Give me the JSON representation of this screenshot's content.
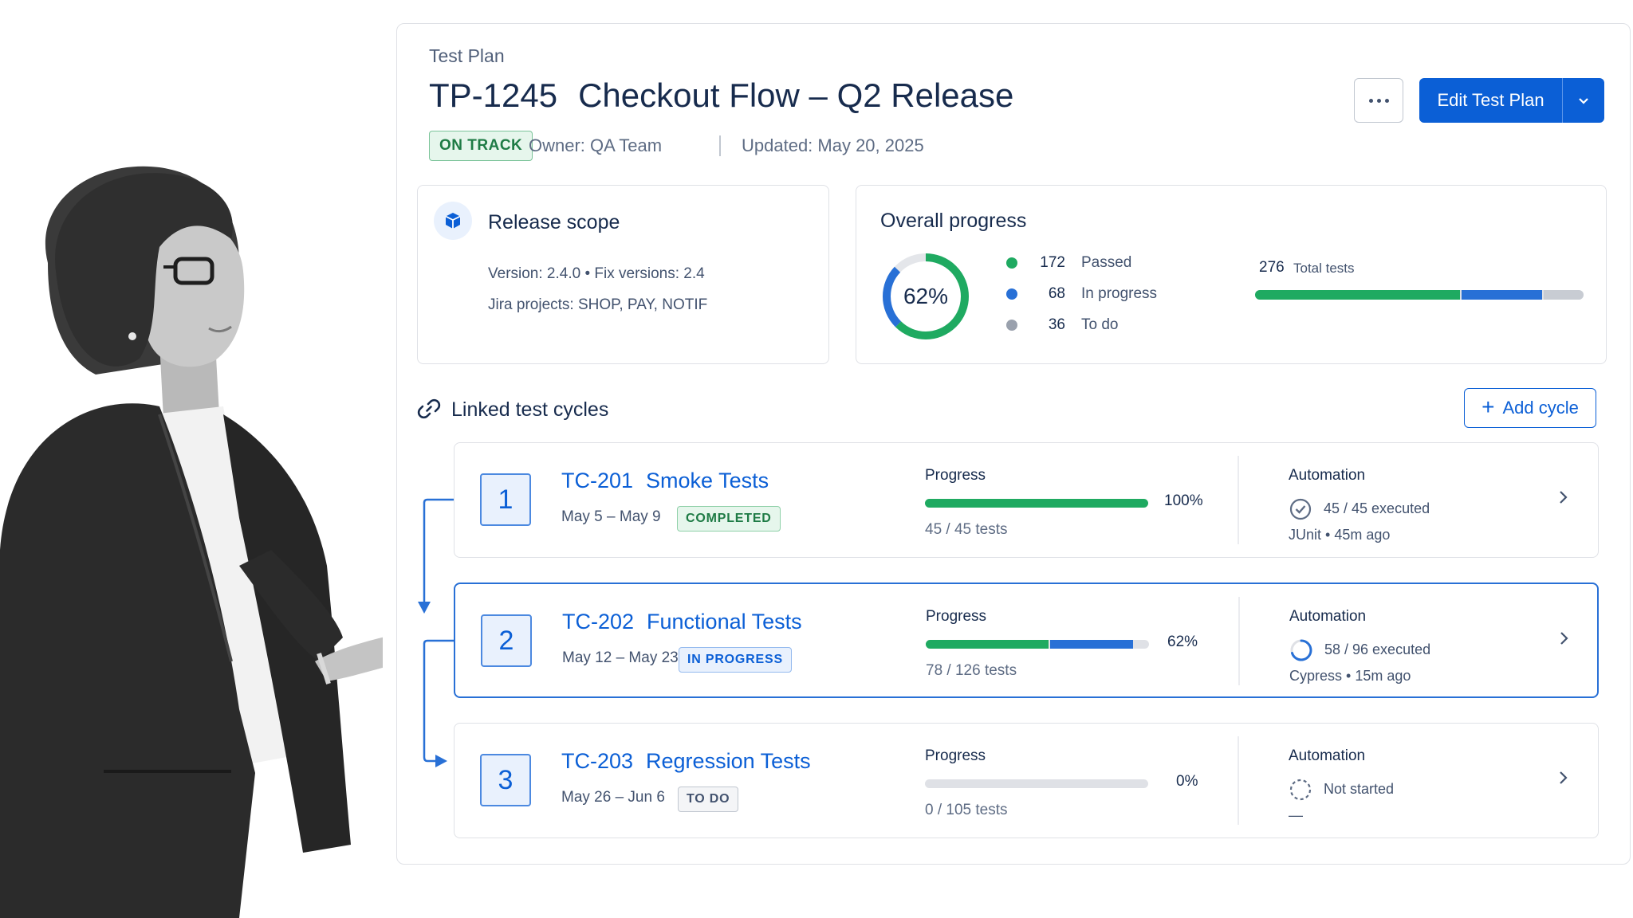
{
  "header": {
    "eyebrow": "Test Plan",
    "key": "TP-1245",
    "title": "Checkout Flow – Q2 Release",
    "status": "ON TRACK",
    "owner": "Owner: QA Team",
    "updated": "Updated: May 20, 2025",
    "edit_label": "Edit Test Plan"
  },
  "release_scope": {
    "title": "Release scope",
    "version_line": "Version: 2.4.0  •  Fix versions: 2.4",
    "projects_line": "Jira projects: SHOP, PAY, NOTIF"
  },
  "overall": {
    "title": "Overall progress",
    "percent_label": "62%",
    "percent": 62,
    "passed": 172,
    "passed_label": "Passed",
    "in_progress": 68,
    "in_progress_label": "In progress",
    "todo": 36,
    "todo_label": "To do",
    "total": 276,
    "total_label": "Total tests"
  },
  "colors": {
    "primary": "#0b5fd6",
    "passed": "#1faa61",
    "in_progress": "#2870d6",
    "todo": "#c1c7d0"
  },
  "linked": {
    "title": "Linked test cycles",
    "add_label": "Add cycle",
    "cycles": [
      {
        "num": "1",
        "key": "TC-201",
        "name": "Smoke Tests",
        "dates": "May 5 – May 9",
        "status": "COMPLETED",
        "progress_label": "Progress",
        "pct_label": "100%",
        "passed_frac": 1.0,
        "inprog_frac": 0.0,
        "tests": "45 / 45 tests",
        "automation_label": "Automation",
        "executed": "45 / 45 executed",
        "meta": "JUnit • 45m ago"
      },
      {
        "num": "2",
        "key": "TC-202",
        "name": "Functional Tests",
        "dates": "May 12 – May 23",
        "status": "IN PROGRESS",
        "progress_label": "Progress",
        "pct_label": "62%",
        "passed_frac": 0.55,
        "inprog_frac": 0.37,
        "tests": "78 / 126 tests",
        "automation_label": "Automation",
        "executed": "58 / 96 executed",
        "meta": "Cypress • 15m ago"
      },
      {
        "num": "3",
        "key": "TC-203",
        "name": "Regression Tests",
        "dates": "May 26 – Jun 6",
        "status": "TO DO",
        "progress_label": "Progress",
        "pct_label": "0%",
        "passed_frac": 0.0,
        "inprog_frac": 0.0,
        "tests": "0 / 105 tests",
        "automation_label": "Automation",
        "executed": "Not started",
        "meta": "—"
      }
    ]
  }
}
